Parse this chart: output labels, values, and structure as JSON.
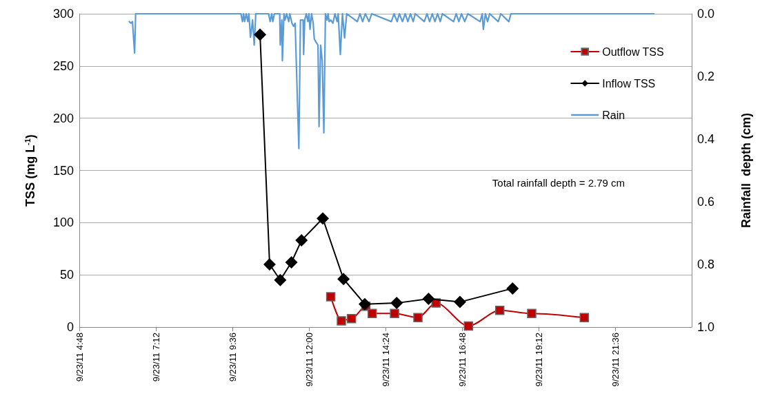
{
  "chart_data": {
    "type": "line",
    "ylabel": "TSS (mg L$^{-1}$)",
    "y2label": "Rainfall  depth (cm)",
    "annotations": [
      "Total rainfall depth = 2.79 cm"
    ],
    "xlim": [
      "--09-23T04:48",
      "--09-24T00:00"
    ],
    "xticks": [
      {
        "value": "--09-23T04:48",
        "label": "9/23/11 4:48"
      },
      {
        "value": "--09-23T07:12",
        "label": "9/23/11 7:12"
      },
      {
        "value": "--09-23T09:36",
        "label": "9/23/11 9:36"
      },
      {
        "value": "--09-23T12:00",
        "label": "9/23/11 12:00"
      },
      {
        "value": "--09-23T14:24",
        "label": "9/23/11 14:24"
      },
      {
        "value": "--09-23T16:48",
        "label": "9/23/11 16:48"
      },
      {
        "value": "--09-23T19:12",
        "label": "9/23/11 19:12"
      },
      {
        "value": "--09-23T21:36",
        "label": "9/23/11 21:36"
      }
    ],
    "ylim": [
      0,
      300
    ],
    "yticks": [
      0,
      50,
      100,
      150,
      200,
      250,
      300
    ],
    "y2lim": [
      1,
      0
    ],
    "y2ticks": [
      {
        "value": 0,
        "label": "0.0"
      },
      0.2,
      0.4,
      0.6,
      0.8,
      {
        "value": 1,
        "label": "1.0"
      }
    ],
    "grid": "y",
    "legend": "top right",
    "series": [
      {
        "name": "Outflow TSS",
        "color": "#c00000",
        "marker": "square",
        "x": [
          "--09-23T12:41",
          "--09-23T13:01",
          "--09-23T13:20",
          "--09-23T13:47",
          "--09-23T13:59",
          "--09-23T14:41",
          "--09-23T15:25",
          "--09-23T15:59",
          "--09-23T17:00",
          "--09-23T17:59",
          "--09-23T18:59",
          "--09-23T20:38"
        ],
        "values": [
          29,
          6,
          8,
          20,
          13,
          13,
          9,
          23,
          1,
          16,
          13,
          9
        ]
      },
      {
        "name": "Inflow TSS",
        "color": "#000000",
        "marker": "diamond",
        "x": [
          "--09-23T10:28",
          "--09-23T10:46",
          "--09-23T11:06",
          "--09-23T11:27",
          "--09-23T11:46",
          "--09-23T12:26",
          "--09-23T13:05",
          "--09-23T13:45",
          "--09-23T14:45",
          "--09-23T15:45",
          "--09-23T16:44",
          "--09-23T18:23"
        ],
        "values": [
          280,
          60,
          45,
          62,
          83,
          104,
          46,
          22,
          23,
          27,
          24,
          37
        ]
      },
      {
        "name": "Rain",
        "color": "#5b9bd5",
        "marker": "none",
        "axis": "y2",
        "x": [
          "--09-23T06:22",
          "--09-23T06:25",
          "--09-23T06:28",
          "--09-23T06:32",
          "--09-23T06:34",
          "--09-23T09:52",
          "--09-23T09:55",
          "--09-23T09:57",
          "--09-23T09:59",
          "--09-23T10:02",
          "--09-23T10:05",
          "--09-23T10:07",
          "--09-23T10:10",
          "--09-23T10:14",
          "--09-23T10:17",
          "--09-23T10:20",
          "--09-23T10:44",
          "--09-23T10:47",
          "--09-23T10:50",
          "--09-23T10:52",
          "--09-23T10:55",
          "--09-23T11:05",
          "--09-23T11:06",
          "--09-23T11:09",
          "--09-23T11:10",
          "--09-23T11:13",
          "--09-23T11:15",
          "--09-23T11:18",
          "--09-23T11:22",
          "--09-23T11:24",
          "--09-23T11:28",
          "--09-23T11:31",
          "--09-23T11:34",
          "--09-23T11:41",
          "--09-23T11:44",
          "--09-23T11:49",
          "--09-23T11:50",
          "--09-23T11:52",
          "--09-23T11:55",
          "--09-23T11:58",
          "--09-23T12:00",
          "--09-23T12:02",
          "--09-23T12:05",
          "--09-23T12:08",
          "--09-23T12:10",
          "--09-23T12:13",
          "--09-23T12:17",
          "--09-23T12:19",
          "--09-23T12:22",
          "--09-23T12:25",
          "--09-23T12:28",
          "--09-23T12:31",
          "--09-23T12:34",
          "--09-23T12:36",
          "--09-23T12:38",
          "--09-23T12:41",
          "--09-23T12:45",
          "--09-23T12:49",
          "--09-23T12:53",
          "--09-23T12:55",
          "--09-23T12:59",
          "--09-23T13:03",
          "--09-23T13:07",
          "--09-23T13:11",
          "--09-23T13:31",
          "--09-23T13:36",
          "--09-23T13:41",
          "--09-23T13:46",
          "--09-23T13:53",
          "--09-23T13:58",
          "--09-23T14:35",
          "--09-23T14:40",
          "--09-23T14:46",
          "--09-23T14:50",
          "--09-23T14:56",
          "--09-23T15:01",
          "--09-23T15:06",
          "--09-23T15:11",
          "--09-23T15:16",
          "--09-23T15:20",
          "--09-23T15:37",
          "--09-23T15:42",
          "--09-23T15:47",
          "--09-23T15:52",
          "--09-23T15:57",
          "--09-23T16:02",
          "--09-23T16:07",
          "--09-23T16:11",
          "--09-23T16:32",
          "--09-23T16:37",
          "--09-23T16:42",
          "--09-23T16:47",
          "--09-23T16:53",
          "--09-23T16:59",
          "--09-23T17:22",
          "--09-23T17:26",
          "--09-23T17:28",
          "--09-23T17:32",
          "--09-23T17:36",
          "--09-23T17:40",
          "--09-23T17:56",
          "--09-23T18:01",
          "--09-23T18:16",
          "--09-23T18:20",
          "--09-23T22:49"
        ],
        "values": [
          0.025,
          0.03,
          0.025,
          0.125,
          0,
          0,
          0.025,
          0,
          0.025,
          0,
          0.025,
          0,
          0.075,
          0.02,
          0.1,
          0,
          0,
          0.025,
          0,
          0.025,
          0,
          0,
          0.1,
          0.02,
          0.15,
          0,
          0.02,
          0,
          0.025,
          0,
          0.03,
          0.04,
          0.03,
          0.43,
          0.02,
          0.02,
          0.13,
          0.02,
          0,
          0.025,
          0,
          0.05,
          0,
          0.03,
          0.08,
          0.09,
          0.1,
          0.36,
          0.1,
          0.15,
          0.38,
          0,
          0.02,
          0,
          0.025,
          0.02,
          0.03,
          0,
          0.025,
          0,
          0.13,
          0,
          0.077,
          0,
          0.025,
          0,
          0.025,
          0,
          0.025,
          0,
          0.025,
          0,
          0.025,
          0,
          0.025,
          0,
          0.025,
          0,
          0.025,
          0,
          0.025,
          0,
          0.025,
          0,
          0.025,
          0,
          0.025,
          0,
          0.025,
          0,
          0.025,
          0,
          0.025,
          0,
          0.025,
          0,
          0.05,
          0,
          0.025,
          0,
          0.025,
          0,
          0.025,
          0,
          0
        ]
      }
    ]
  }
}
